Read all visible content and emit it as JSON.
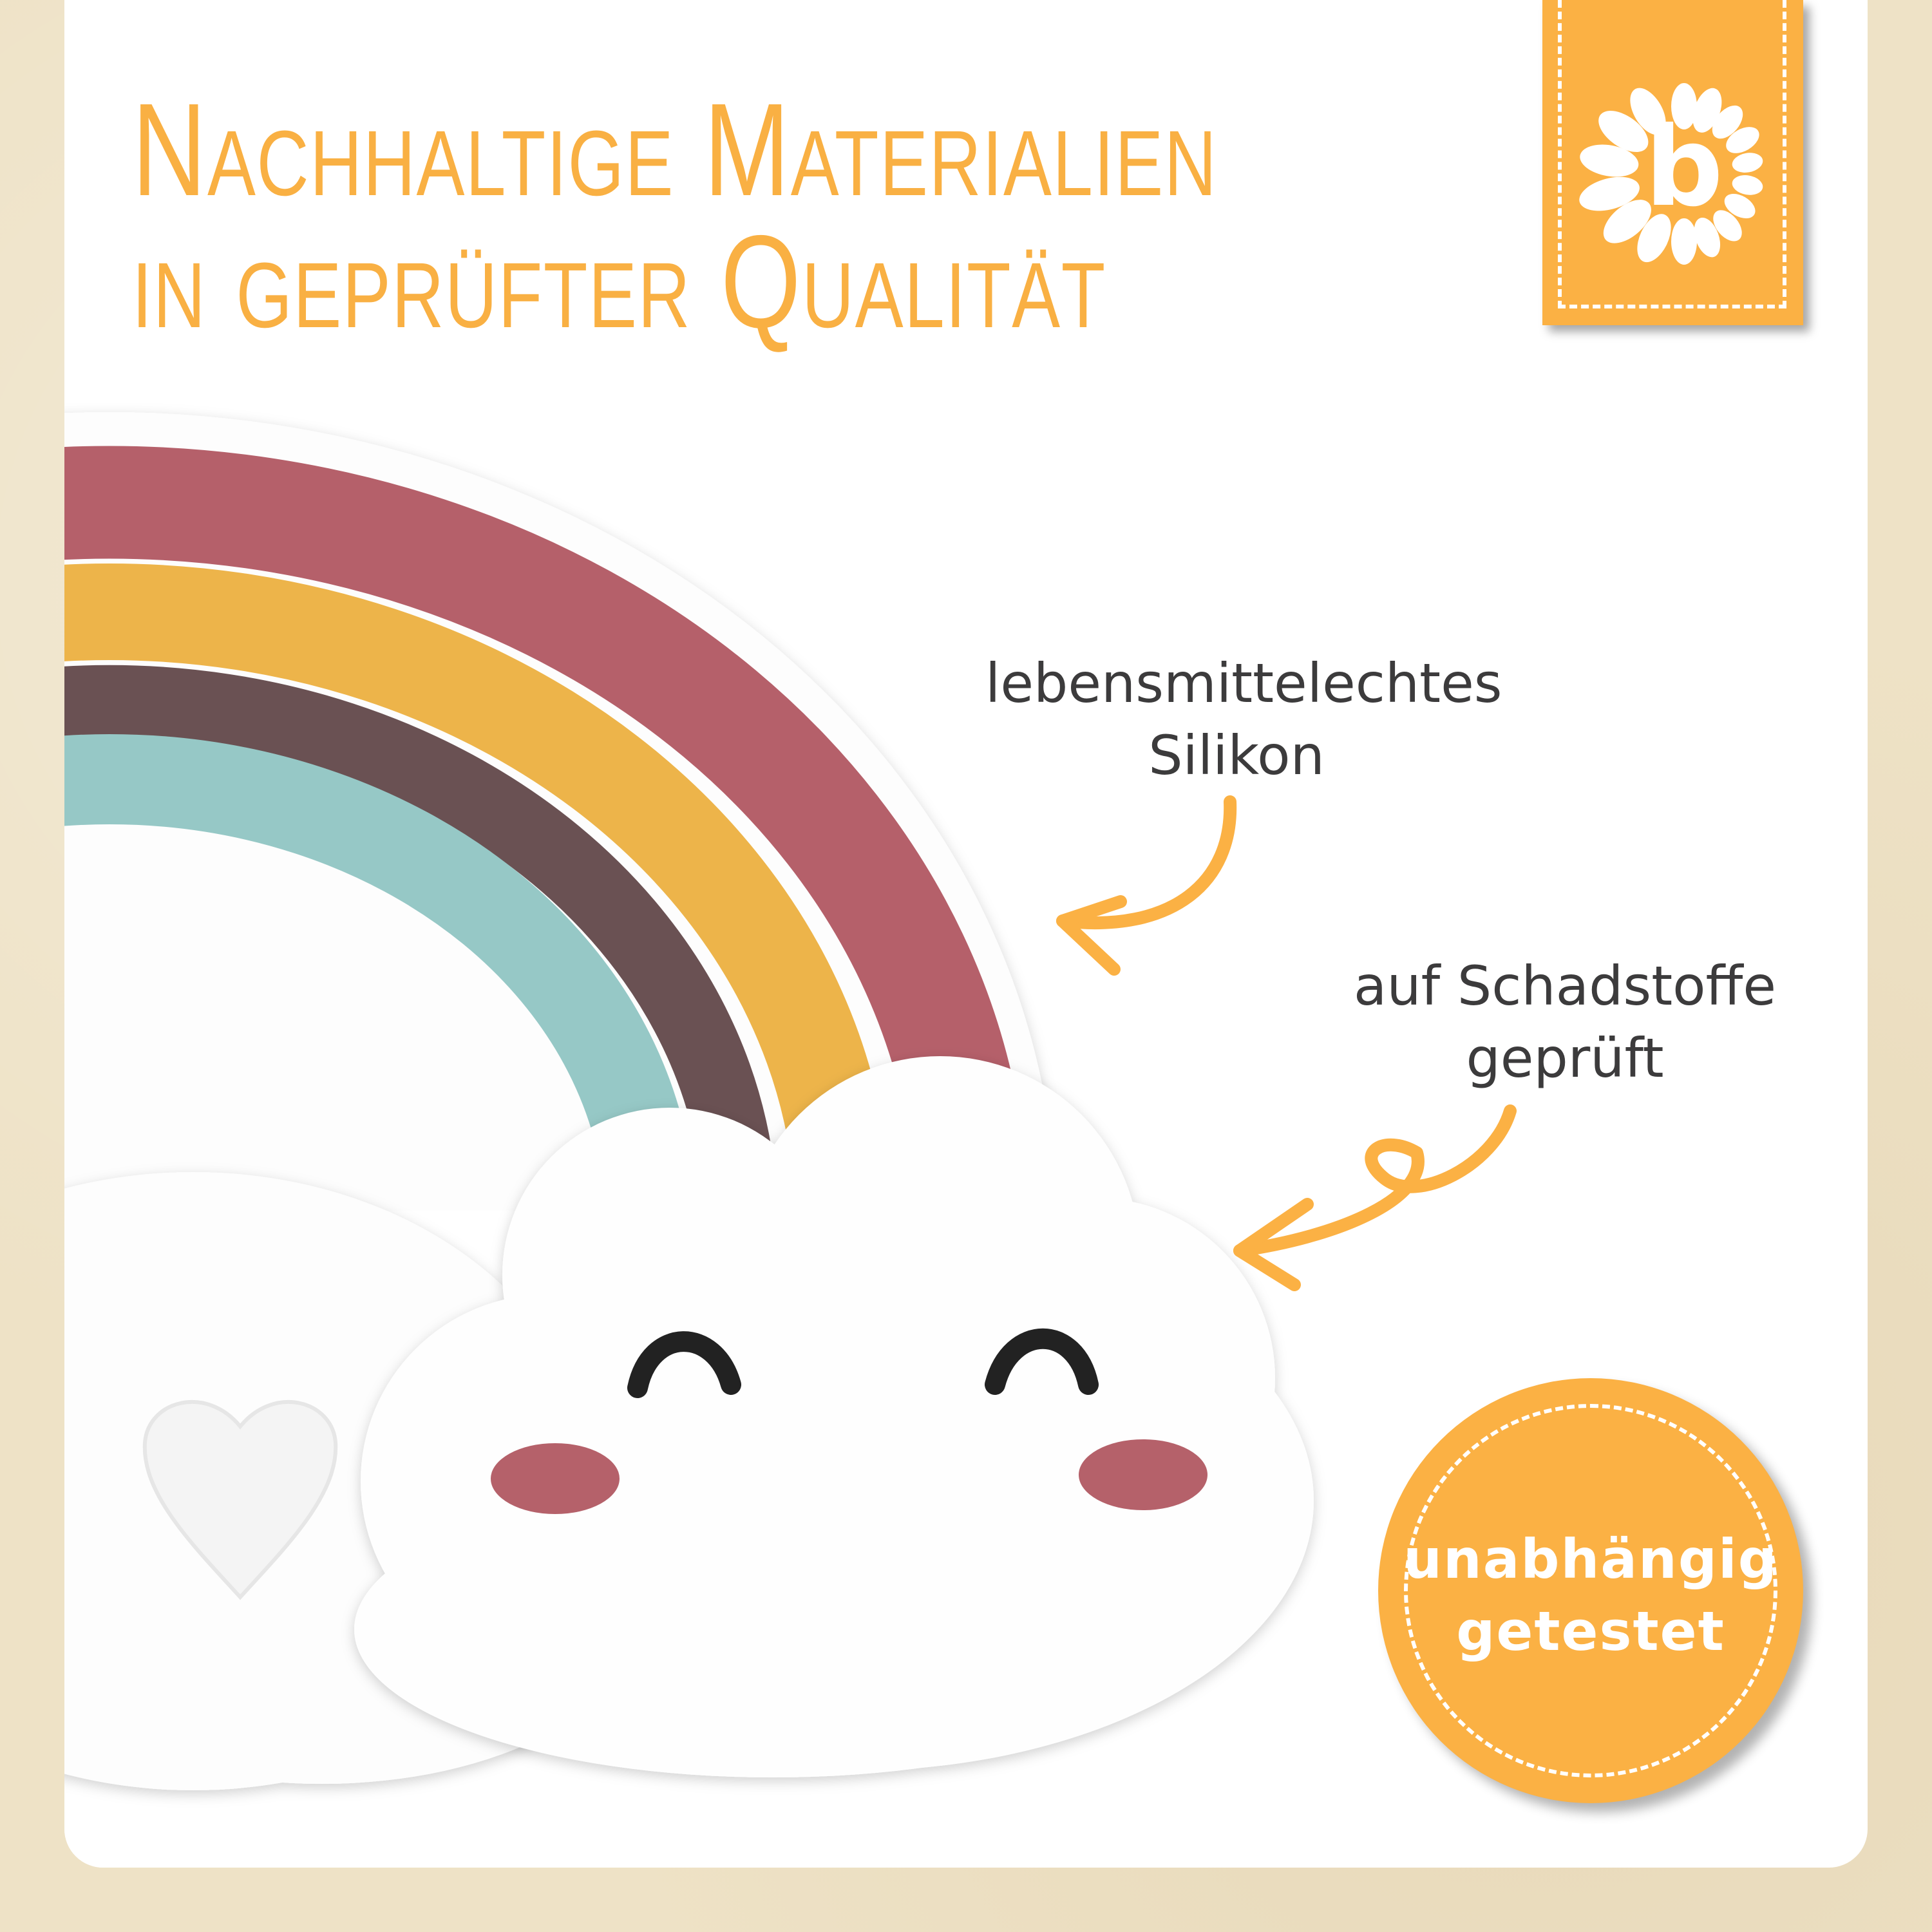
{
  "headline": {
    "line1": "Nachhaltige Materialien",
    "line2": "in geprüfter Qualität"
  },
  "brand": {
    "logo_letter": "b",
    "logo_icon": "sunflower-b-logo"
  },
  "callouts": [
    {
      "line1": "lebensmittelechtes",
      "line2": "Silikon"
    },
    {
      "line1": "auf Schadstoffe",
      "line2": "geprüft"
    }
  ],
  "seal": {
    "line1": "unabhängig",
    "line2": "getestet"
  },
  "colors": {
    "accent": "#FBB144",
    "background": "#EEE2C6",
    "rainbow_red": "#B5606A",
    "rainbow_yellow": "#EDB44A",
    "rainbow_brown": "#6A5153",
    "rainbow_teal": "#96C8C6",
    "text": "#3C3B3C"
  }
}
